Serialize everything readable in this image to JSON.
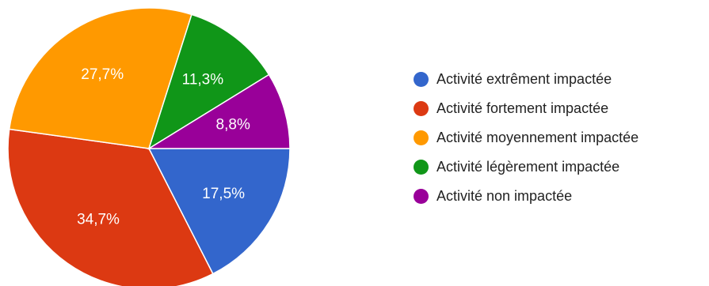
{
  "chart_data": {
    "type": "pie",
    "title": "",
    "legend_position": "right",
    "slices": [
      {
        "name": "Activité extrêment impactée",
        "value": 17.5,
        "label": "17,5%",
        "color": "#3366cc"
      },
      {
        "name": "Activité fortement impactée",
        "value": 34.7,
        "label": "34,7%",
        "color": "#dc3912"
      },
      {
        "name": "Activité moyennement impactée",
        "value": 27.7,
        "label": "27,7%",
        "color": "#ff9900"
      },
      {
        "name": "Activité légèrement impactée",
        "value": 11.3,
        "label": "11,3%",
        "color": "#109618"
      },
      {
        "name": "Activité non impactée",
        "value": 8.8,
        "label": "8,8%",
        "color": "#990099"
      }
    ]
  }
}
